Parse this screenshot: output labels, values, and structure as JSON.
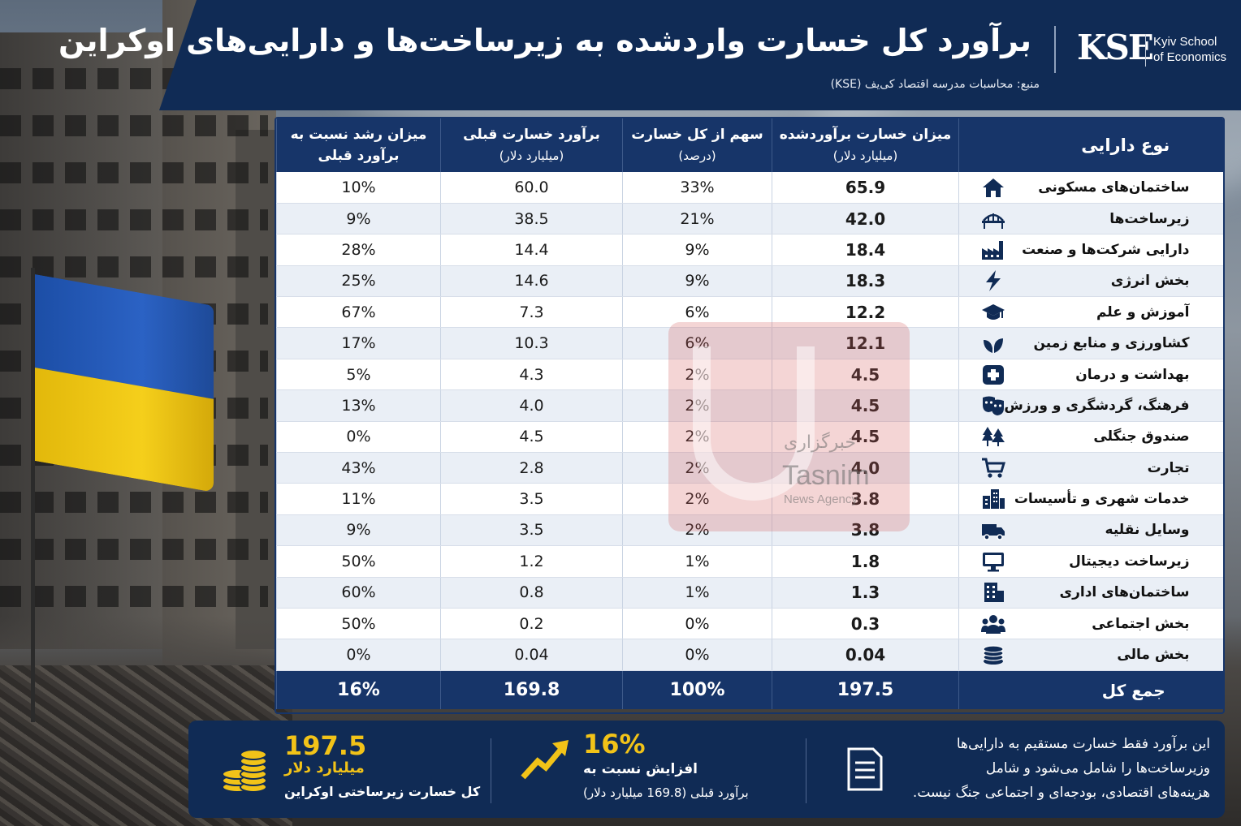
{
  "header": {
    "title": "برآورد کل خسارت واردشده به زیرساخت‌ها و دارایی‌های اوکراین",
    "source": "منبع: محاسبات مدرسه اقتصاد کی‌یف (KSE)",
    "logo_text": "KSE",
    "logo_name_line1": "Kyiv School",
    "logo_name_line2": "of Economics"
  },
  "table": {
    "columns": {
      "type": "نوع دارایی",
      "estimate": "میزان خسارت برآوردشده",
      "estimate_unit": "(میلیارد دلار)",
      "share": "سهم از کل خسارت",
      "share_unit": "(درصد)",
      "previous": "برآورد خسارت قبلی",
      "previous_unit": "(میلیارد دلار)",
      "growth": "میزان رشد نسبت به",
      "growth_line2": "برآورد قبلی"
    },
    "rows": [
      {
        "type": "ساختمان‌های مسکونی",
        "icon": "house-icon",
        "estimate": "65.9",
        "share": "33%",
        "previous": "60.0",
        "growth": "10%"
      },
      {
        "type": "زیرساخت‌ها",
        "icon": "bridge-icon",
        "estimate": "42.0",
        "share": "21%",
        "previous": "38.5",
        "growth": "9%"
      },
      {
        "type": "دارایی شرکت‌ها و صنعت",
        "icon": "factory-icon",
        "estimate": "18.4",
        "share": "9%",
        "previous": "14.4",
        "growth": "28%"
      },
      {
        "type": "بخش انرژی",
        "icon": "lightning-icon",
        "estimate": "18.3",
        "share": "9%",
        "previous": "14.6",
        "growth": "25%"
      },
      {
        "type": "آموزش و علم",
        "icon": "graduation-cap-icon",
        "estimate": "12.2",
        "share": "6%",
        "previous": "7.3",
        "growth": "67%"
      },
      {
        "type": "کشاورزی و منابع زمین",
        "icon": "leaf-icon",
        "estimate": "12.1",
        "share": "6%",
        "previous": "10.3",
        "growth": "17%"
      },
      {
        "type": "بهداشت و درمان",
        "icon": "medical-cross-icon",
        "estimate": "4.5",
        "share": "2%",
        "previous": "4.3",
        "growth": "5%"
      },
      {
        "type": "فرهنگ، گردشگری و ورزش",
        "icon": "theater-masks-icon",
        "estimate": "4.5",
        "share": "2%",
        "previous": "4.0",
        "growth": "13%"
      },
      {
        "type": "صندوق جنگلی",
        "icon": "trees-icon",
        "estimate": "4.5",
        "share": "2%",
        "previous": "4.5",
        "growth": "0%"
      },
      {
        "type": "تجارت",
        "icon": "shopping-cart-icon",
        "estimate": "4.0",
        "share": "2%",
        "previous": "2.8",
        "growth": "43%"
      },
      {
        "type": "خدمات شهری و تأسیسات",
        "icon": "city-buildings-icon",
        "estimate": "3.8",
        "share": "2%",
        "previous": "3.5",
        "growth": "11%"
      },
      {
        "type": "وسایل نقلیه",
        "icon": "truck-icon",
        "estimate": "3.8",
        "share": "2%",
        "previous": "3.5",
        "growth": "9%"
      },
      {
        "type": "زیرساخت دیجیتال",
        "icon": "monitor-icon",
        "estimate": "1.8",
        "share": "1%",
        "previous": "1.2",
        "growth": "50%"
      },
      {
        "type": "ساختمان‌های اداری",
        "icon": "office-building-icon",
        "estimate": "1.3",
        "share": "1%",
        "previous": "0.8",
        "growth": "60%"
      },
      {
        "type": "بخش اجتماعی",
        "icon": "people-group-icon",
        "estimate": "0.3",
        "share": "0%",
        "previous": "0.2",
        "growth": "50%"
      },
      {
        "type": "بخش مالی",
        "icon": "coins-stack-icon",
        "estimate": "0.04",
        "share": "0%",
        "previous": "0.04",
        "growth": "0%"
      }
    ],
    "total": {
      "type": "جمع کل",
      "estimate": "197.5",
      "share": "100%",
      "previous": "169.8",
      "growth": "16%"
    }
  },
  "watermark": {
    "line1": "خبرگزاری",
    "line2": "Tasnim",
    "line3": "News Agency"
  },
  "summary": {
    "total_value": "197.5",
    "total_unit": "میلیارد دلار",
    "total_caption": "کل خسارت زیرساختی اوکراین",
    "growth_value": "16%",
    "growth_line1": "افزایش نسبت به",
    "growth_line2": "برآورد قبلی (169.8 میلیارد دلار)",
    "note_line1": "این برآورد فقط خسارت مستقیم به دارایی‌ها",
    "note_line2": "وزیرساخت‌ها را شامل می‌شود و شامل",
    "note_line3": "هزینه‌های اقتصادی، بودجه‌ای و اجتماعی جنگ نیست."
  },
  "colors": {
    "navy": "#102b55",
    "header_blue": "#173569",
    "accent_yellow": "#f2c318",
    "flag_blue": "#2b62c4",
    "flag_yellow": "#f5cf1b"
  }
}
